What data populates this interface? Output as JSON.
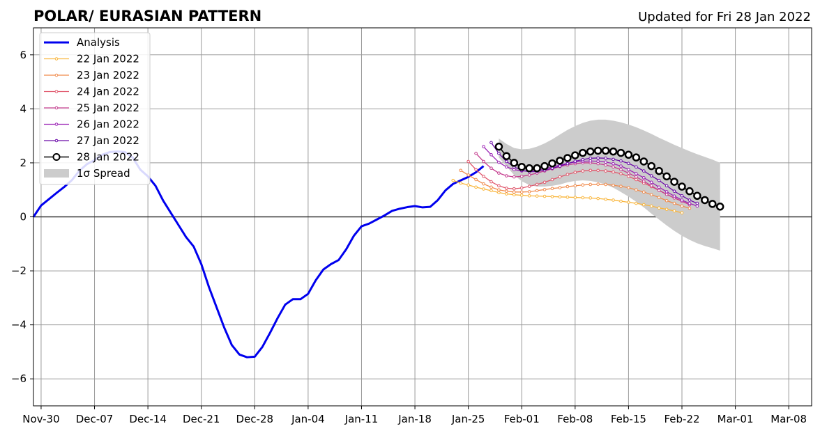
{
  "chart_data": {
    "type": "line",
    "title": "POLAR/ EURASIAN  PATTERN",
    "subtitle": "Updated for Fri 28 Jan 2022",
    "ylim": [
      -7,
      7
    ],
    "yticks": [
      {
        "value": -6,
        "label": "−6"
      },
      {
        "value": -4,
        "label": "−4"
      },
      {
        "value": -2,
        "label": "−2"
      },
      {
        "value": 0,
        "label": "0"
      },
      {
        "value": 2,
        "label": "2"
      },
      {
        "value": 4,
        "label": "4"
      },
      {
        "value": 6,
        "label": "6"
      }
    ],
    "xlim": [
      "2021-11-29",
      "2022-03-11"
    ],
    "xticks": [
      {
        "date": "2021-11-30",
        "label": "Nov-30"
      },
      {
        "date": "2021-12-07",
        "label": "Dec-07"
      },
      {
        "date": "2021-12-14",
        "label": "Dec-14"
      },
      {
        "date": "2021-12-21",
        "label": "Dec-21"
      },
      {
        "date": "2021-12-28",
        "label": "Dec-28"
      },
      {
        "date": "2022-01-04",
        "label": "Jan-04"
      },
      {
        "date": "2022-01-11",
        "label": "Jan-11"
      },
      {
        "date": "2022-01-18",
        "label": "Jan-18"
      },
      {
        "date": "2022-01-25",
        "label": "Jan-25"
      },
      {
        "date": "2022-02-01",
        "label": "Feb-01"
      },
      {
        "date": "2022-02-08",
        "label": "Feb-08"
      },
      {
        "date": "2022-02-15",
        "label": "Feb-15"
      },
      {
        "date": "2022-02-22",
        "label": "Feb-22"
      },
      {
        "date": "2022-03-01",
        "label": "Mar-01"
      },
      {
        "date": "2022-03-08",
        "label": "Mar-08"
      }
    ],
    "grid": true,
    "legend_position": "upper-left",
    "analysis": {
      "name": "Analysis",
      "color": "#0000ee",
      "x": [
        "2021-11-29",
        "2021-11-30",
        "2021-12-01",
        "2021-12-02",
        "2021-12-03",
        "2021-12-04",
        "2021-12-05",
        "2021-12-06",
        "2021-12-07",
        "2021-12-08",
        "2021-12-09",
        "2021-12-10",
        "2021-12-11",
        "2021-12-12",
        "2021-12-13",
        "2021-12-14",
        "2021-12-15",
        "2021-12-16",
        "2021-12-17",
        "2021-12-18",
        "2021-12-19",
        "2021-12-20",
        "2021-12-21",
        "2021-12-22",
        "2021-12-23",
        "2021-12-24",
        "2021-12-25",
        "2021-12-26",
        "2021-12-27",
        "2021-12-28",
        "2021-12-29",
        "2021-12-30",
        "2021-12-31",
        "2022-01-01",
        "2022-01-02",
        "2022-01-03",
        "2022-01-04",
        "2022-01-05",
        "2022-01-06",
        "2022-01-07",
        "2022-01-08",
        "2022-01-09",
        "2022-01-10",
        "2022-01-11",
        "2022-01-12",
        "2022-01-13",
        "2022-01-14",
        "2022-01-15",
        "2022-01-16",
        "2022-01-17",
        "2022-01-18",
        "2022-01-19",
        "2022-01-20",
        "2022-01-21",
        "2022-01-22",
        "2022-01-23",
        "2022-01-24",
        "2022-01-25",
        "2022-01-26",
        "2022-01-27"
      ],
      "y": [
        0.0,
        0.42,
        0.65,
        0.88,
        1.1,
        1.35,
        1.7,
        1.95,
        2.1,
        2.3,
        2.4,
        2.42,
        2.4,
        2.2,
        1.75,
        1.5,
        1.15,
        0.6,
        0.15,
        -0.3,
        -0.75,
        -1.1,
        -1.75,
        -2.6,
        -3.35,
        -4.1,
        -4.75,
        -5.1,
        -5.2,
        -5.18,
        -4.82,
        -4.3,
        -3.75,
        -3.25,
        -3.05,
        -3.05,
        -2.85,
        -2.35,
        -1.95,
        -1.75,
        -1.6,
        -1.2,
        -0.7,
        -0.35,
        -0.25,
        -0.1,
        0.05,
        0.22,
        0.3,
        0.36,
        0.4,
        0.35,
        0.37,
        0.62,
        0.98,
        1.22,
        1.35,
        1.48,
        1.65,
        1.88
      ]
    },
    "forecasts": [
      {
        "name": "22 Jan 2022",
        "color": "#f9b53a",
        "start": "2022-01-23",
        "y": [
          1.35,
          1.25,
          1.18,
          1.1,
          1.03,
          0.97,
          0.9,
          0.85,
          0.82,
          0.8,
          0.78,
          0.77,
          0.76,
          0.75,
          0.74,
          0.73,
          0.72,
          0.71,
          0.7,
          0.68,
          0.65,
          0.62,
          0.58,
          0.54,
          0.5,
          0.45,
          0.4,
          0.33,
          0.28,
          0.22,
          0.15
        ]
      },
      {
        "name": "23 Jan 2022",
        "color": "#f08a4b",
        "start": "2022-01-24",
        "y": [
          1.72,
          1.55,
          1.38,
          1.22,
          1.1,
          1.0,
          0.95,
          0.92,
          0.92,
          0.93,
          0.97,
          1.01,
          1.05,
          1.08,
          1.12,
          1.15,
          1.18,
          1.2,
          1.21,
          1.2,
          1.17,
          1.13,
          1.08,
          1.0,
          0.92,
          0.82,
          0.72,
          0.6,
          0.5,
          0.4,
          0.32
        ]
      },
      {
        "name": "24 Jan 2022",
        "color": "#e0576c",
        "start": "2022-01-25",
        "y": [
          2.05,
          1.75,
          1.5,
          1.3,
          1.15,
          1.06,
          1.04,
          1.07,
          1.13,
          1.2,
          1.28,
          1.38,
          1.48,
          1.57,
          1.65,
          1.7,
          1.72,
          1.72,
          1.7,
          1.66,
          1.6,
          1.5,
          1.38,
          1.25,
          1.12,
          0.98,
          0.84,
          0.7,
          0.58,
          0.45
        ]
      },
      {
        "name": "25 Jan 2022",
        "color": "#c43c8e",
        "start": "2022-01-26",
        "y": [
          2.35,
          2.05,
          1.8,
          1.62,
          1.52,
          1.48,
          1.5,
          1.55,
          1.62,
          1.7,
          1.78,
          1.86,
          1.92,
          1.97,
          2.0,
          2.0,
          1.97,
          1.92,
          1.85,
          1.75,
          1.62,
          1.48,
          1.32,
          1.15,
          0.98,
          0.83,
          0.7,
          0.58,
          0.45
        ]
      },
      {
        "name": "26 Jan 2022",
        "color": "#9b23b5",
        "start": "2022-01-27",
        "y": [
          2.6,
          2.3,
          2.02,
          1.85,
          1.75,
          1.7,
          1.7,
          1.73,
          1.78,
          1.85,
          1.92,
          1.98,
          2.03,
          2.06,
          2.07,
          2.06,
          2.03,
          1.97,
          1.88,
          1.75,
          1.6,
          1.45,
          1.28,
          1.1,
          0.93,
          0.77,
          0.62,
          0.5,
          0.4
        ]
      },
      {
        "name": "27 Jan 2022",
        "color": "#6a0aa8",
        "start": "2022-01-28",
        "y": [
          2.75,
          2.35,
          2.05,
          1.85,
          1.72,
          1.67,
          1.68,
          1.73,
          1.8,
          1.88,
          1.97,
          2.06,
          2.12,
          2.17,
          2.18,
          2.17,
          2.13,
          2.07,
          1.98,
          1.85,
          1.7,
          1.52,
          1.35,
          1.15,
          0.95,
          0.78,
          0.62,
          0.5
        ]
      },
      {
        "name": "28 Jan 2022",
        "color": "#000000",
        "marker": "hollow-circle",
        "start": "2022-01-29",
        "y": [
          2.6,
          2.25,
          2.0,
          1.85,
          1.8,
          1.8,
          1.88,
          1.98,
          2.08,
          2.18,
          2.28,
          2.37,
          2.42,
          2.45,
          2.45,
          2.42,
          2.37,
          2.3,
          2.2,
          2.05,
          1.88,
          1.7,
          1.5,
          1.3,
          1.12,
          0.95,
          0.78,
          0.62,
          0.48,
          0.38
        ]
      }
    ],
    "spread": {
      "name": "1σ Spread",
      "color": "#cccccc",
      "start": "2022-01-29",
      "upper": [
        2.9,
        2.7,
        2.55,
        2.5,
        2.52,
        2.6,
        2.72,
        2.87,
        3.05,
        3.22,
        3.36,
        3.48,
        3.56,
        3.6,
        3.6,
        3.56,
        3.5,
        3.42,
        3.32,
        3.2,
        3.07,
        2.93,
        2.8,
        2.67,
        2.55,
        2.43,
        2.32,
        2.22,
        2.12,
        2.0
      ],
      "lower": [
        2.2,
        1.87,
        1.55,
        1.32,
        1.18,
        1.12,
        1.12,
        1.15,
        1.2,
        1.28,
        1.33,
        1.35,
        1.33,
        1.28,
        1.2,
        1.08,
        0.92,
        0.75,
        0.56,
        0.35,
        0.12,
        -0.1,
        -0.32,
        -0.52,
        -0.7,
        -0.85,
        -0.98,
        -1.08,
        -1.16,
        -1.25
      ]
    }
  }
}
